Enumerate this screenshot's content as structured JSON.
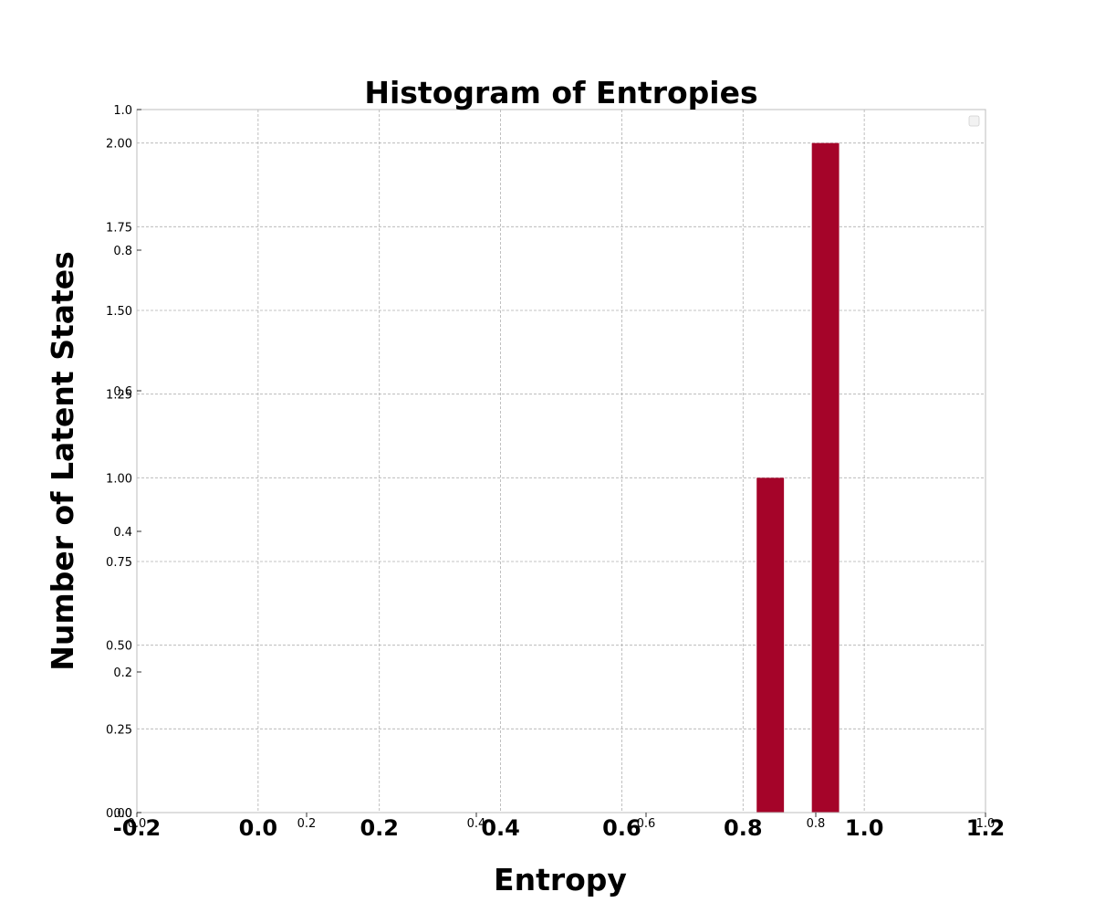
{
  "chart_data": {
    "type": "bar",
    "title": "Histogram of Entropies",
    "xlabel": "Entropy",
    "ylabel": "Number of Latent States",
    "xlim": [
      -0.2,
      1.2
    ],
    "ylim": [
      0,
      2.1
    ],
    "xticks": [
      "-0.2",
      "0.0",
      "0.2",
      "0.4",
      "0.6",
      "0.8",
      "1.0",
      "1.2"
    ],
    "yticks": [
      "0.00",
      "0.25",
      "0.50",
      "0.75",
      "1.00",
      "1.25",
      "1.50",
      "1.75",
      "2.00"
    ],
    "secondary_xticks": [
      "0.0",
      "0.2",
      "0.4",
      "0.6",
      "0.8",
      "1.0"
    ],
    "secondary_yticks": [
      "0.0",
      "0.2",
      "0.4",
      "0.6",
      "0.8",
      "1.0"
    ],
    "bars": [
      {
        "x": 0.845,
        "width": 0.045,
        "value": 1
      },
      {
        "x": 0.936,
        "width": 0.045,
        "value": 2
      }
    ],
    "bar_color": "#a50429",
    "grid": true,
    "legend": "top-right, empty"
  }
}
